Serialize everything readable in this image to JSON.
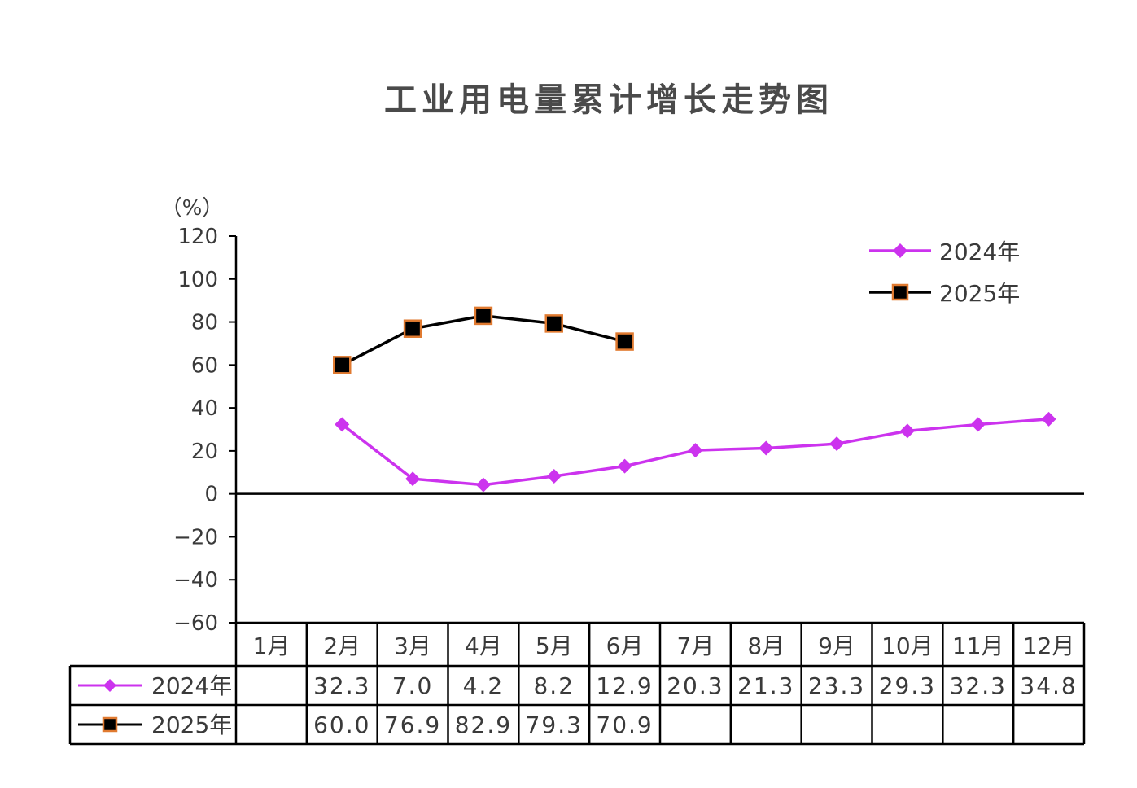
{
  "chart_data": {
    "type": "line",
    "title": "工业用电量累计增长走势图",
    "y_unit": "（%）",
    "ylim": [
      -60,
      120
    ],
    "yticks": [
      120,
      100,
      80,
      60,
      40,
      20,
      0,
      -20,
      -40,
      -60
    ],
    "categories": [
      "1月",
      "2月",
      "3月",
      "4月",
      "5月",
      "6月",
      "7月",
      "8月",
      "9月",
      "10月",
      "11月",
      "12月"
    ],
    "series": [
      {
        "name": "2024年",
        "color": "#cc33ee",
        "marker": "diamond",
        "values": [
          null,
          32.3,
          7.0,
          4.2,
          8.2,
          12.9,
          20.3,
          21.3,
          23.3,
          29.3,
          32.3,
          34.8
        ],
        "labels": [
          "",
          "32.3",
          "7.0",
          "4.2",
          "8.2",
          "12.9",
          "20.3",
          "21.3",
          "23.3",
          "29.3",
          "32.3",
          "34.8"
        ]
      },
      {
        "name": "2025年",
        "color": "#000000",
        "marker_fill": "#000000",
        "marker_edge": "#e07a30",
        "marker": "square",
        "values": [
          null,
          60.0,
          76.9,
          82.9,
          79.3,
          70.9,
          null,
          null,
          null,
          null,
          null,
          null
        ],
        "labels": [
          "",
          "60.0",
          "76.9",
          "82.9",
          "79.3",
          "70.9",
          "",
          "",
          "",
          "",
          "",
          ""
        ]
      }
    ],
    "legend": "top-right",
    "grid": false,
    "data_table": true
  }
}
